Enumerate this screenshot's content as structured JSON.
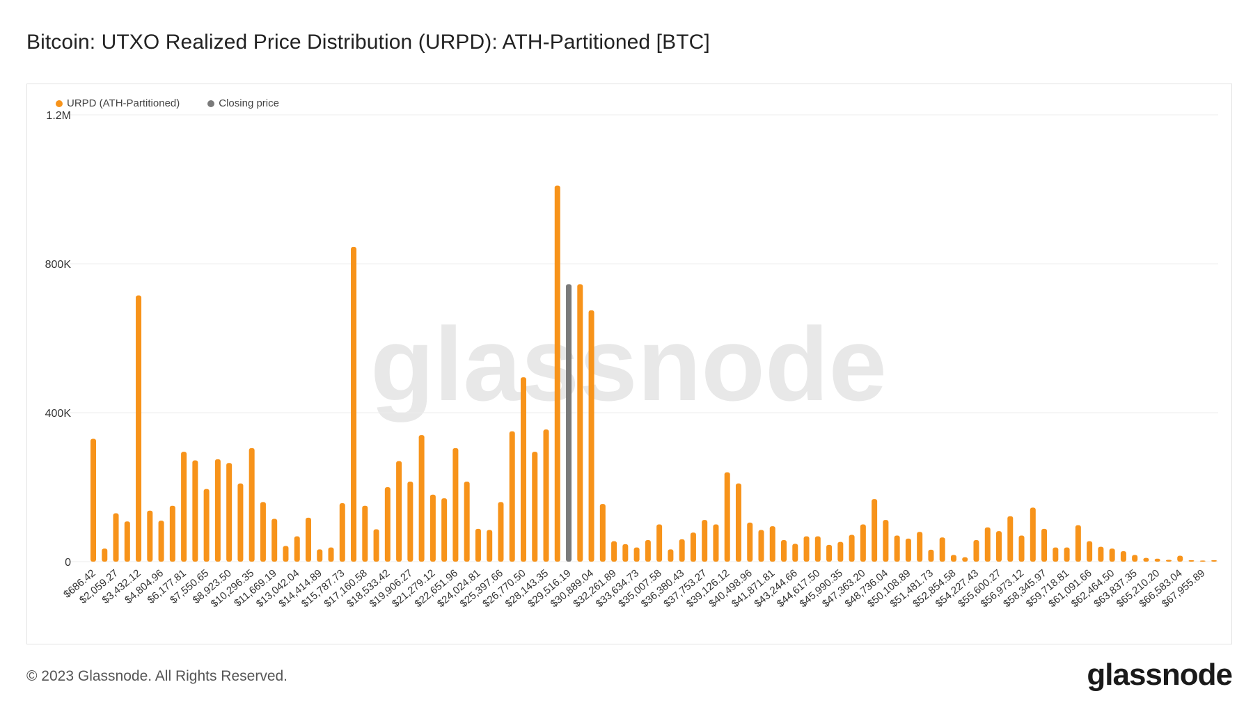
{
  "title": "Bitcoin: UTXO Realized Price Distribution (URPD): ATH-Partitioned [BTC]",
  "footer": "© 2023 Glassnode. All Rights Reserved.",
  "brand": "glassnode",
  "watermark": "glassnode",
  "colors": {
    "urpd": "#f7931a",
    "closing": "#7a7a7a",
    "grid": "#ececec"
  },
  "legend": {
    "urpd_label": "URPD (ATH-Partitioned)",
    "closing_label": "Closing price"
  },
  "chart_data": {
    "type": "bar",
    "title": "Bitcoin: UTXO Realized Price Distribution (URPD): ATH-Partitioned [BTC]",
    "ylim": [
      0,
      1200000
    ],
    "yticks": [
      {
        "value": 0,
        "label": "0"
      },
      {
        "value": 400000,
        "label": "400K"
      },
      {
        "value": 800000,
        "label": "800K"
      },
      {
        "value": 1200000,
        "label": "1.2M"
      }
    ],
    "closing_price_index": 42,
    "series": [
      {
        "name": "URPD (ATH-Partitioned)",
        "values": [
          330000,
          35000,
          130000,
          108000,
          715000,
          137000,
          110000,
          150000,
          295000,
          272000,
          195000,
          275000,
          265000,
          210000,
          305000,
          160000,
          115000,
          42000,
          68000,
          118000,
          33000,
          38000,
          157000,
          845000,
          150000,
          87000,
          200000,
          270000,
          215000,
          340000,
          180000,
          170000,
          305000,
          215000,
          88000,
          85000,
          160000,
          350000,
          495000,
          295000,
          355000,
          1010000,
          745000,
          675000,
          155000,
          55000,
          47000,
          38000,
          58000,
          100000,
          33000,
          60000,
          78000,
          112000,
          100000,
          240000,
          210000,
          105000,
          85000,
          95000,
          58000,
          48000,
          68000,
          68000,
          45000,
          53000,
          72000,
          100000,
          168000,
          112000,
          70000,
          62000,
          80000,
          32000,
          65000,
          18000,
          12000,
          58000,
          92000,
          82000,
          122000,
          70000,
          145000,
          88000,
          38000,
          38000,
          98000,
          55000,
          40000,
          35000,
          28000,
          18000,
          10000,
          8000,
          5000,
          16000,
          4000,
          3000,
          4000
        ]
      },
      {
        "name": "Closing price",
        "values": [
          745000
        ]
      }
    ],
    "x_tick_labels": [
      "$686.42",
      "$2,059.27",
      "$3,432.12",
      "$4,804.96",
      "$6,177.81",
      "$7,550.65",
      "$8,923.50",
      "$10,296.35",
      "$11,669.19",
      "$13,042.04",
      "$14,414.89",
      "$15,787.73",
      "$17,160.58",
      "$18,533.42",
      "$19,906.27",
      "$21,279.12",
      "$22,651.96",
      "$24,024.81",
      "$25,397.66",
      "$26,770.50",
      "$28,143.35",
      "$29,516.19",
      "$30,889.04",
      "$32,261.89",
      "$33,634.73",
      "$35,007.58",
      "$36,380.43",
      "$37,753.27",
      "$39,126.12",
      "$40,498.96",
      "$41,871.81",
      "$43,244.66",
      "$44,617.50",
      "$45,990.35",
      "$47,363.20",
      "$48,736.04",
      "$50,108.89",
      "$51,481.73",
      "$52,854.58",
      "$54,227.43",
      "$55,600.27",
      "$56,973.12",
      "$58,345.97",
      "$59,718.81",
      "$61,091.66",
      "$62,464.50",
      "$63,837.35",
      "$65,210.20",
      "$66,583.04",
      "$67,955.89"
    ]
  }
}
